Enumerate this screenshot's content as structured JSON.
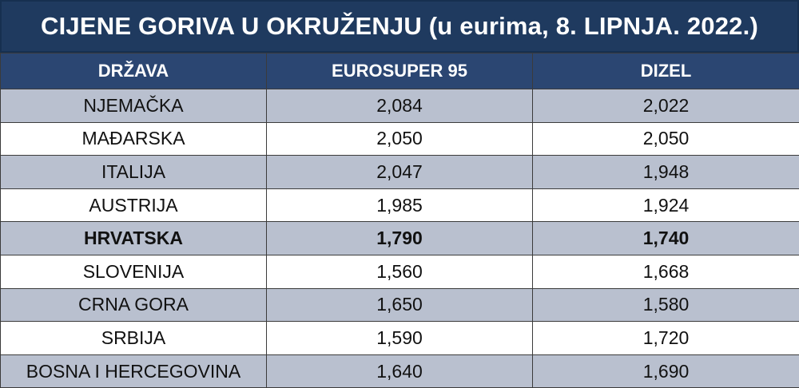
{
  "title": "CIJENE GORIVA U OKRUŽENJU (u eurima, 8. LIPNJA. 2022.)",
  "colors": {
    "header": "#2b4672",
    "title_bar": "#1f3a5f",
    "stripe": "#b9c0cf"
  },
  "chart_data": {
    "type": "table",
    "title": "CIJENE GORIVA U OKRUŽENJU (u eurima, 8. LIPNJA. 2022.)",
    "columns": [
      "DRŽAVA",
      "EUROSUPER 95",
      "DIZEL"
    ],
    "rows": [
      {
        "country": "NJEMAČKA",
        "eurosuper95": "2,084",
        "dizel": "2,022",
        "bold": false
      },
      {
        "country": "MAĐARSKA",
        "eurosuper95": "2,050",
        "dizel": "2,050",
        "bold": false
      },
      {
        "country": "ITALIJA",
        "eurosuper95": "2,047",
        "dizel": "1,948",
        "bold": false
      },
      {
        "country": "AUSTRIJA",
        "eurosuper95": "1,985",
        "dizel": "1,924",
        "bold": false
      },
      {
        "country": "HRVATSKA",
        "eurosuper95": "1,790",
        "dizel": "1,740",
        "bold": true
      },
      {
        "country": "SLOVENIJA",
        "eurosuper95": "1,560",
        "dizel": "1,668",
        "bold": false
      },
      {
        "country": "CRNA GORA",
        "eurosuper95": "1,650",
        "dizel": "1,580",
        "bold": false
      },
      {
        "country": "SRBIJA",
        "eurosuper95": "1,590",
        "dizel": "1,720",
        "bold": false
      },
      {
        "country": "BOSNA I HERCEGOVINA",
        "eurosuper95": "1,640",
        "dizel": "1,690",
        "bold": false
      }
    ]
  }
}
